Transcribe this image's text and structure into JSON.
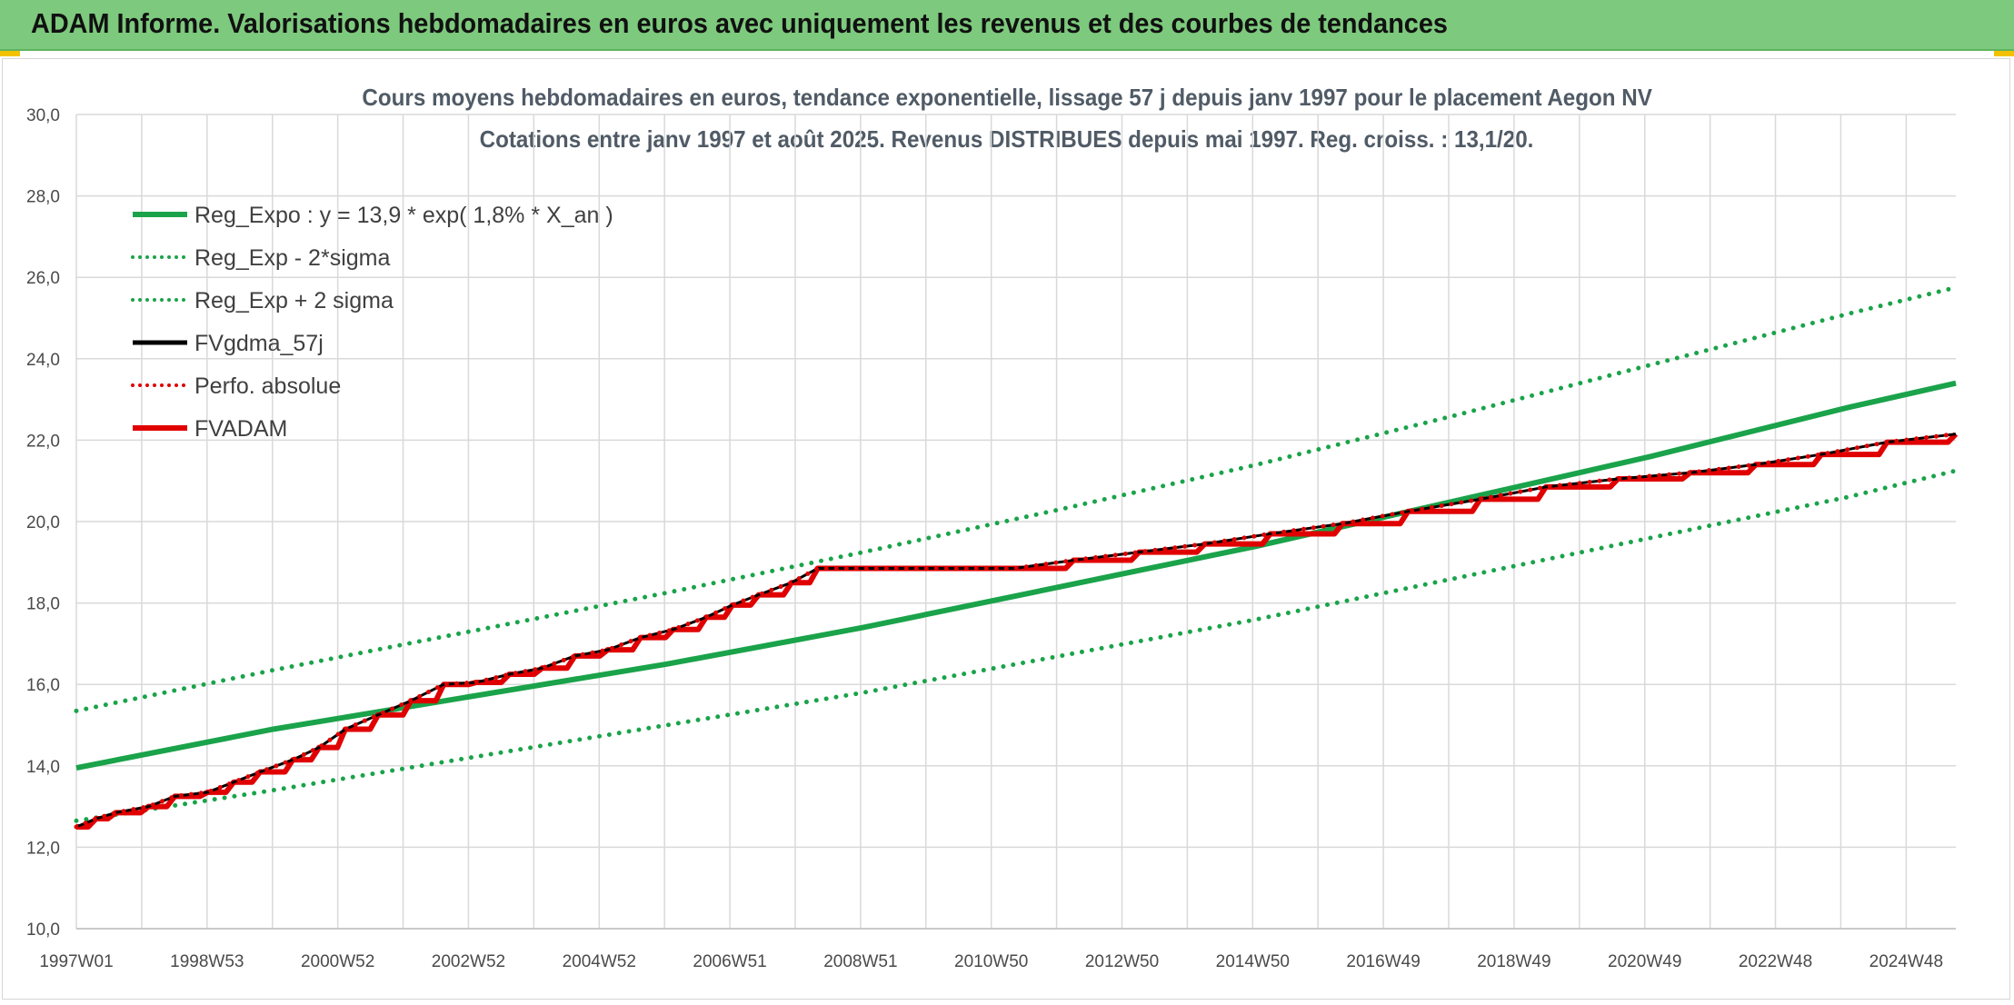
{
  "header": {
    "title": "ADAM Informe. Valorisations hebdomadaires en euros avec uniquement les revenus et des courbes de tendances"
  },
  "chart_data": {
    "type": "line",
    "title": "Cours moyens hebdomadaires en euros, tendance exponentielle, lissage 57 j depuis janv 1997 pour le placement Aegon NV",
    "subtitle": "Cotations entre janv 1997 et août 2025. Revenus DISTRIBUES depuis mai 1997. Reg. croiss. : 13,1/20.",
    "xlabel": "",
    "ylabel": "",
    "x_ticks": [
      "1997W01",
      "1998W53",
      "2000W52",
      "2002W52",
      "2004W52",
      "2006W51",
      "2008W51",
      "2010W50",
      "2012W50",
      "2014W50",
      "2016W49",
      "2018W49",
      "2020W49",
      "2022W48",
      "2024W48"
    ],
    "xlim": [
      1997.0,
      2025.65
    ],
    "ylim": [
      10,
      30
    ],
    "y_ticks": [
      "10,0",
      "12,0",
      "14,0",
      "16,0",
      "18,0",
      "20,0",
      "22,0",
      "24,0",
      "26,0",
      "28,0",
      "30,0"
    ],
    "grid": true,
    "legend_position": "top-left",
    "series": [
      {
        "name": "Reg_Expo : y = 13,9 * exp( 1,8% *  X_an )",
        "style": "solid",
        "color": "#1aa34a",
        "x": [
          1997.0,
          2000.0,
          2003.0,
          2006.0,
          2009.0,
          2012.0,
          2015.0,
          2018.0,
          2021.0,
          2024.0,
          2025.65
        ],
        "y": [
          13.95,
          14.9,
          15.7,
          16.5,
          17.4,
          18.4,
          19.4,
          20.5,
          21.6,
          22.8,
          23.4
        ]
      },
      {
        "name": "Reg_Exp - 2*sigma",
        "style": "dotted",
        "color": "#1aa34a",
        "x": [
          1997.0,
          2000.0,
          2003.0,
          2006.0,
          2009.0,
          2012.0,
          2015.0,
          2018.0,
          2021.0,
          2024.0,
          2025.65
        ],
        "y": [
          12.65,
          13.4,
          14.2,
          15.0,
          15.8,
          16.7,
          17.6,
          18.6,
          19.6,
          20.6,
          21.25
        ]
      },
      {
        "name": "Reg_Exp + 2 sigma",
        "style": "dotted",
        "color": "#1aa34a",
        "x": [
          1997.0,
          2000.0,
          2003.0,
          2006.0,
          2009.0,
          2012.0,
          2015.0,
          2018.0,
          2021.0,
          2024.0,
          2025.65
        ],
        "y": [
          15.35,
          16.35,
          17.3,
          18.25,
          19.25,
          20.3,
          21.4,
          22.6,
          23.85,
          25.1,
          25.75
        ]
      },
      {
        "name": "FVgdma_57j",
        "style": "solid",
        "color": "#000000",
        "x": [
          1997.0,
          1997.3,
          1997.6,
          1998.1,
          1998.5,
          1999.0,
          1999.4,
          1999.8,
          2000.3,
          2000.7,
          2001.1,
          2001.6,
          2002.1,
          2002.6,
          2003.1,
          2003.6,
          2004.1,
          2004.6,
          2005.1,
          2005.6,
          2006.1,
          2006.6,
          2007.0,
          2007.4,
          2007.9,
          2008.3,
          2011.3,
          2012.2,
          2013.2,
          2014.2,
          2015.2,
          2016.3,
          2017.3,
          2018.4,
          2019.4,
          2020.5,
          2021.6,
          2022.6,
          2023.6,
          2024.6,
          2025.65
        ],
        "y": [
          12.5,
          12.7,
          12.85,
          13.0,
          13.25,
          13.35,
          13.6,
          13.85,
          14.15,
          14.45,
          14.9,
          15.25,
          15.6,
          16.0,
          16.05,
          16.25,
          16.4,
          16.7,
          16.85,
          17.15,
          17.35,
          17.65,
          17.95,
          18.2,
          18.5,
          18.85,
          18.85,
          19.05,
          19.25,
          19.45,
          19.7,
          19.95,
          20.25,
          20.55,
          20.85,
          21.05,
          21.2,
          21.4,
          21.65,
          21.95,
          22.15
        ]
      },
      {
        "name": "Perfo. absolue",
        "style": "dotted",
        "color": "#e00000",
        "x": [
          1997.0,
          1997.3,
          1997.6,
          1998.1,
          1998.5,
          1999.0,
          1999.4,
          1999.8,
          2000.3,
          2000.7,
          2001.1,
          2001.6,
          2002.1,
          2002.6,
          2003.1,
          2003.6,
          2004.1,
          2004.6,
          2005.1,
          2005.6,
          2006.1,
          2006.6,
          2007.0,
          2007.4,
          2007.9,
          2008.3,
          2011.3,
          2012.2,
          2013.2,
          2014.2,
          2015.2,
          2016.3,
          2017.3,
          2018.4,
          2019.4,
          2020.5,
          2021.6,
          2022.6,
          2023.6,
          2024.6,
          2025.65
        ],
        "y": [
          12.5,
          12.7,
          12.85,
          13.0,
          13.25,
          13.35,
          13.6,
          13.85,
          14.15,
          14.45,
          14.9,
          15.25,
          15.6,
          16.0,
          16.05,
          16.25,
          16.4,
          16.7,
          16.85,
          17.15,
          17.35,
          17.65,
          17.95,
          18.2,
          18.5,
          18.85,
          18.85,
          19.05,
          19.25,
          19.45,
          19.7,
          19.95,
          20.25,
          20.55,
          20.85,
          21.05,
          21.2,
          21.4,
          21.65,
          21.95,
          22.15
        ]
      },
      {
        "name": "FVADAM",
        "style": "step",
        "color": "#e00000",
        "x": [
          1997.0,
          1997.3,
          1997.6,
          1998.1,
          1998.5,
          1999.0,
          1999.4,
          1999.8,
          2000.3,
          2000.7,
          2001.1,
          2001.6,
          2002.1,
          2002.6,
          2003.1,
          2003.6,
          2004.1,
          2004.6,
          2005.1,
          2005.6,
          2006.1,
          2006.6,
          2007.0,
          2007.4,
          2007.9,
          2008.3,
          2011.3,
          2012.2,
          2013.2,
          2014.2,
          2015.2,
          2016.3,
          2017.3,
          2018.4,
          2019.4,
          2020.5,
          2021.6,
          2022.6,
          2023.6,
          2024.6,
          2025.65
        ],
        "y": [
          12.5,
          12.7,
          12.85,
          13.0,
          13.25,
          13.35,
          13.6,
          13.85,
          14.15,
          14.45,
          14.9,
          15.25,
          15.6,
          16.0,
          16.05,
          16.25,
          16.4,
          16.7,
          16.85,
          17.15,
          17.35,
          17.65,
          17.95,
          18.2,
          18.5,
          18.85,
          18.85,
          19.05,
          19.25,
          19.45,
          19.7,
          19.95,
          20.25,
          20.55,
          20.85,
          21.05,
          21.2,
          21.4,
          21.65,
          21.95,
          22.15
        ]
      }
    ]
  }
}
